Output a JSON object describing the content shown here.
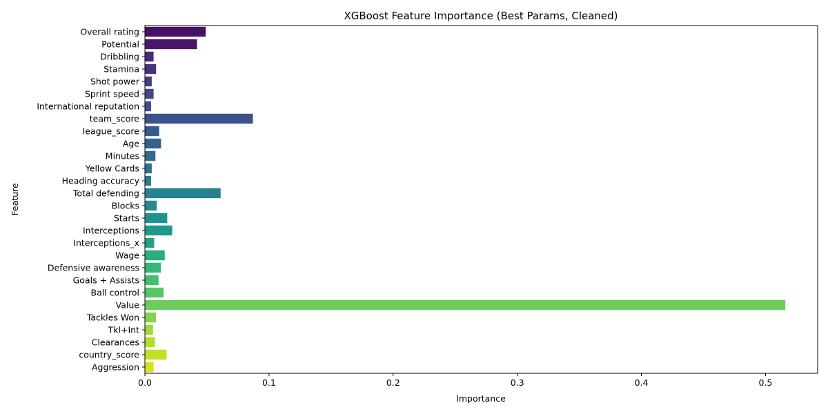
{
  "chart_data": {
    "type": "bar",
    "orientation": "horizontal",
    "title": "XGBoost Feature Importance (Best Params, Cleaned)",
    "xlabel": "Importance",
    "ylabel": "Feature",
    "xlim": [
      0,
      0.542
    ],
    "xticks": [
      0,
      0.1,
      0.2,
      0.3,
      0.4,
      0.5
    ],
    "xtick_labels": [
      "0.0",
      "0.1",
      "0.2",
      "0.3",
      "0.4",
      "0.5"
    ],
    "grid": false,
    "colormap": "viridis",
    "categories": [
      "Overall rating",
      "Potential",
      "Dribbling",
      "Stamina",
      "Shot power",
      "Sprint speed",
      "International reputation",
      "team_score",
      "league_score",
      "Age",
      "Minutes",
      "Yellow Cards",
      "Heading accuracy",
      "Total defending",
      "Blocks",
      "Starts",
      "Interceptions",
      "Interceptions_x",
      "Wage",
      "Defensive awareness",
      "Goals + Assists",
      "Ball control",
      "Value",
      "Tackles Won",
      "Tkl+Int",
      "Clearances",
      "country_score",
      "Aggression"
    ],
    "values": [
      0.049,
      0.042,
      0.007,
      0.009,
      0.0055,
      0.007,
      0.005,
      0.087,
      0.0115,
      0.013,
      0.0085,
      0.0055,
      0.005,
      0.061,
      0.0095,
      0.018,
      0.022,
      0.0075,
      0.016,
      0.013,
      0.011,
      0.015,
      0.516,
      0.009,
      0.0065,
      0.008,
      0.0175,
      0.007
    ],
    "colors": [
      "#471164",
      "#481769",
      "#472a7a",
      "#46327e",
      "#433e85",
      "#404688",
      "#3b518b",
      "#3b528b",
      "#365c8d",
      "#33638d",
      "#2f6c8e",
      "#2c738e",
      "#297b8e",
      "#26828e",
      "#238a8d",
      "#21918c",
      "#1f988b",
      "#20a386",
      "#28ae80",
      "#35b779",
      "#44bf70",
      "#56c667",
      "#6ccd5a",
      "#84d44b",
      "#9dd93b",
      "#b5de2b",
      "#c2df23",
      "#d5e21a"
    ]
  }
}
